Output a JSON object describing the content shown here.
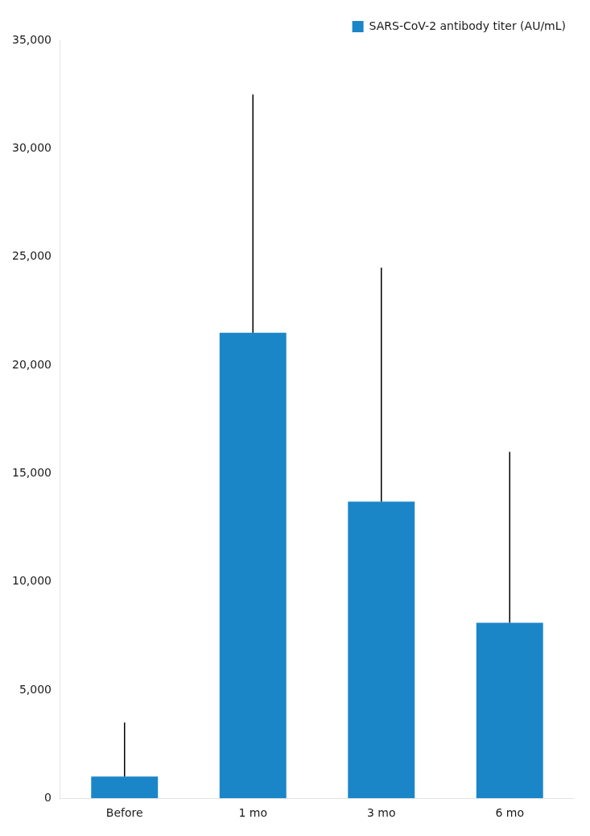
{
  "chart_data": {
    "type": "bar",
    "categories": [
      "Before",
      "1 mo",
      "3 mo",
      "6 mo"
    ],
    "series": [
      {
        "name": "SARS-CoV-2 antibody titer (AU/mL)",
        "color": "#1a86c8",
        "values": [
          1000,
          21500,
          13700,
          8100
        ],
        "error_upper": [
          3500,
          32500,
          24500,
          16000
        ]
      }
    ],
    "ylim": [
      0,
      35000
    ],
    "yticks": [
      0,
      {
        "value": 5000,
        "label": "5,000"
      },
      {
        "value": 10000,
        "label": "10,000"
      },
      {
        "value": 15000,
        "label": "15,000"
      },
      {
        "value": 20000,
        "label": "20,000"
      },
      {
        "value": 25000,
        "label": "25,000"
      },
      {
        "value": 30000,
        "label": "30,000"
      },
      {
        "value": 35000,
        "label": "35,000"
      }
    ],
    "grid": false,
    "legend": "upper right"
  }
}
